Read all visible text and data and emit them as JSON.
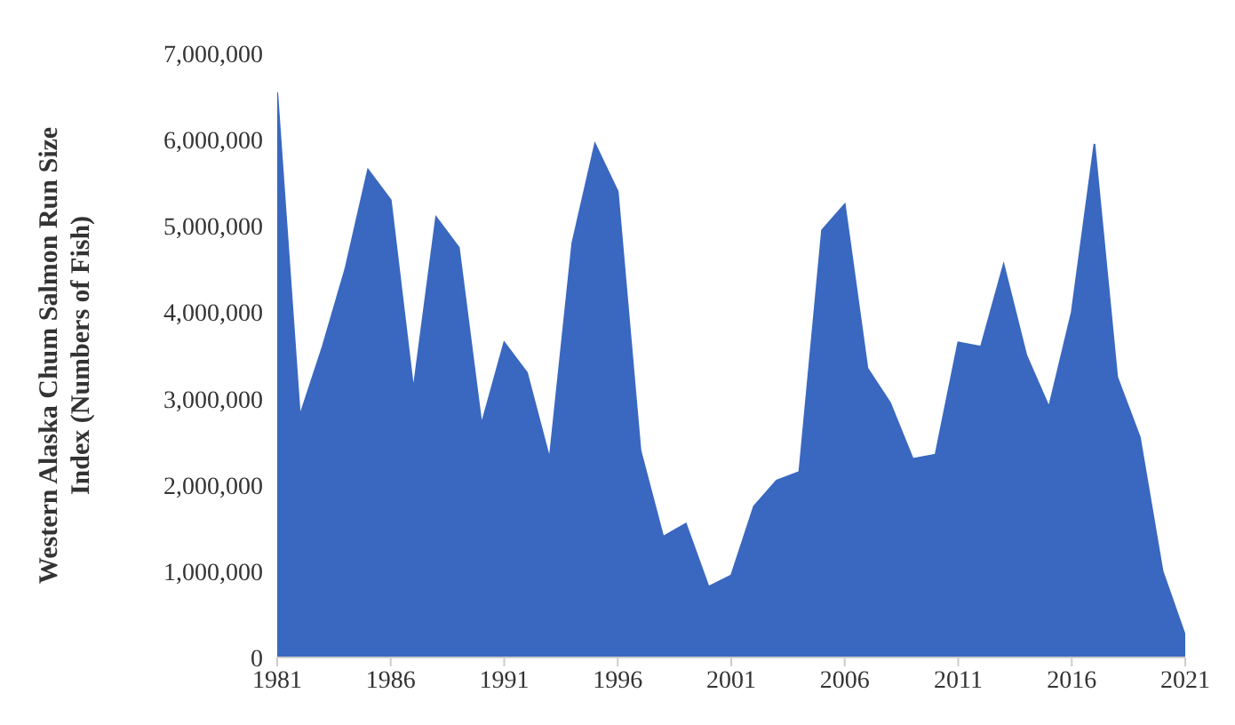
{
  "chart_data": {
    "type": "area",
    "ylabel": "Western Alaska Chum Salmon Run Size Index (Numbers of Fish)",
    "x": [
      1981,
      1982,
      1983,
      1984,
      1985,
      1986,
      1987,
      1988,
      1989,
      1990,
      1991,
      1992,
      1993,
      1994,
      1995,
      1996,
      1997,
      1998,
      1999,
      2000,
      2001,
      2002,
      2003,
      2004,
      2005,
      2006,
      2007,
      2008,
      2009,
      2010,
      2011,
      2012,
      2013,
      2014,
      2015,
      2016,
      2017,
      2018,
      2019,
      2020,
      2021
    ],
    "series": [
      {
        "color": "#3a68c0",
        "values": [
          6550000,
          2800000,
          3600000,
          4500000,
          5650000,
          5300000,
          3100000,
          5100000,
          4750000,
          2700000,
          3650000,
          3300000,
          2300000,
          4800000,
          5950000,
          5400000,
          2400000,
          1400000,
          1550000,
          820000,
          950000,
          1750000,
          2050000,
          2150000,
          4950000,
          5250000,
          3350000,
          2950000,
          2300000,
          2350000,
          3650000,
          3600000,
          4550000,
          3500000,
          2900000,
          4000000,
          5950000,
          3250000,
          2550000,
          1000000,
          250000
        ]
      }
    ],
    "xlim": [
      1981,
      2021
    ],
    "xticks": [
      1981,
      1986,
      1991,
      1996,
      2001,
      2006,
      2011,
      2016,
      2021
    ],
    "ylim": [
      0,
      7000000
    ],
    "yticks": [
      0,
      {
        "value": 1000000,
        "label": "1,000,000"
      },
      {
        "value": 2000000,
        "label": "2,000,000"
      },
      {
        "value": 3000000,
        "label": "3,000,000"
      },
      {
        "value": 4000000,
        "label": "4,000,000"
      },
      {
        "value": 5000000,
        "label": "5,000,000"
      },
      {
        "value": 6000000,
        "label": "6,000,000"
      },
      {
        "value": 7000000,
        "label": "7,000,000"
      }
    ],
    "grid": false,
    "legend": false
  }
}
